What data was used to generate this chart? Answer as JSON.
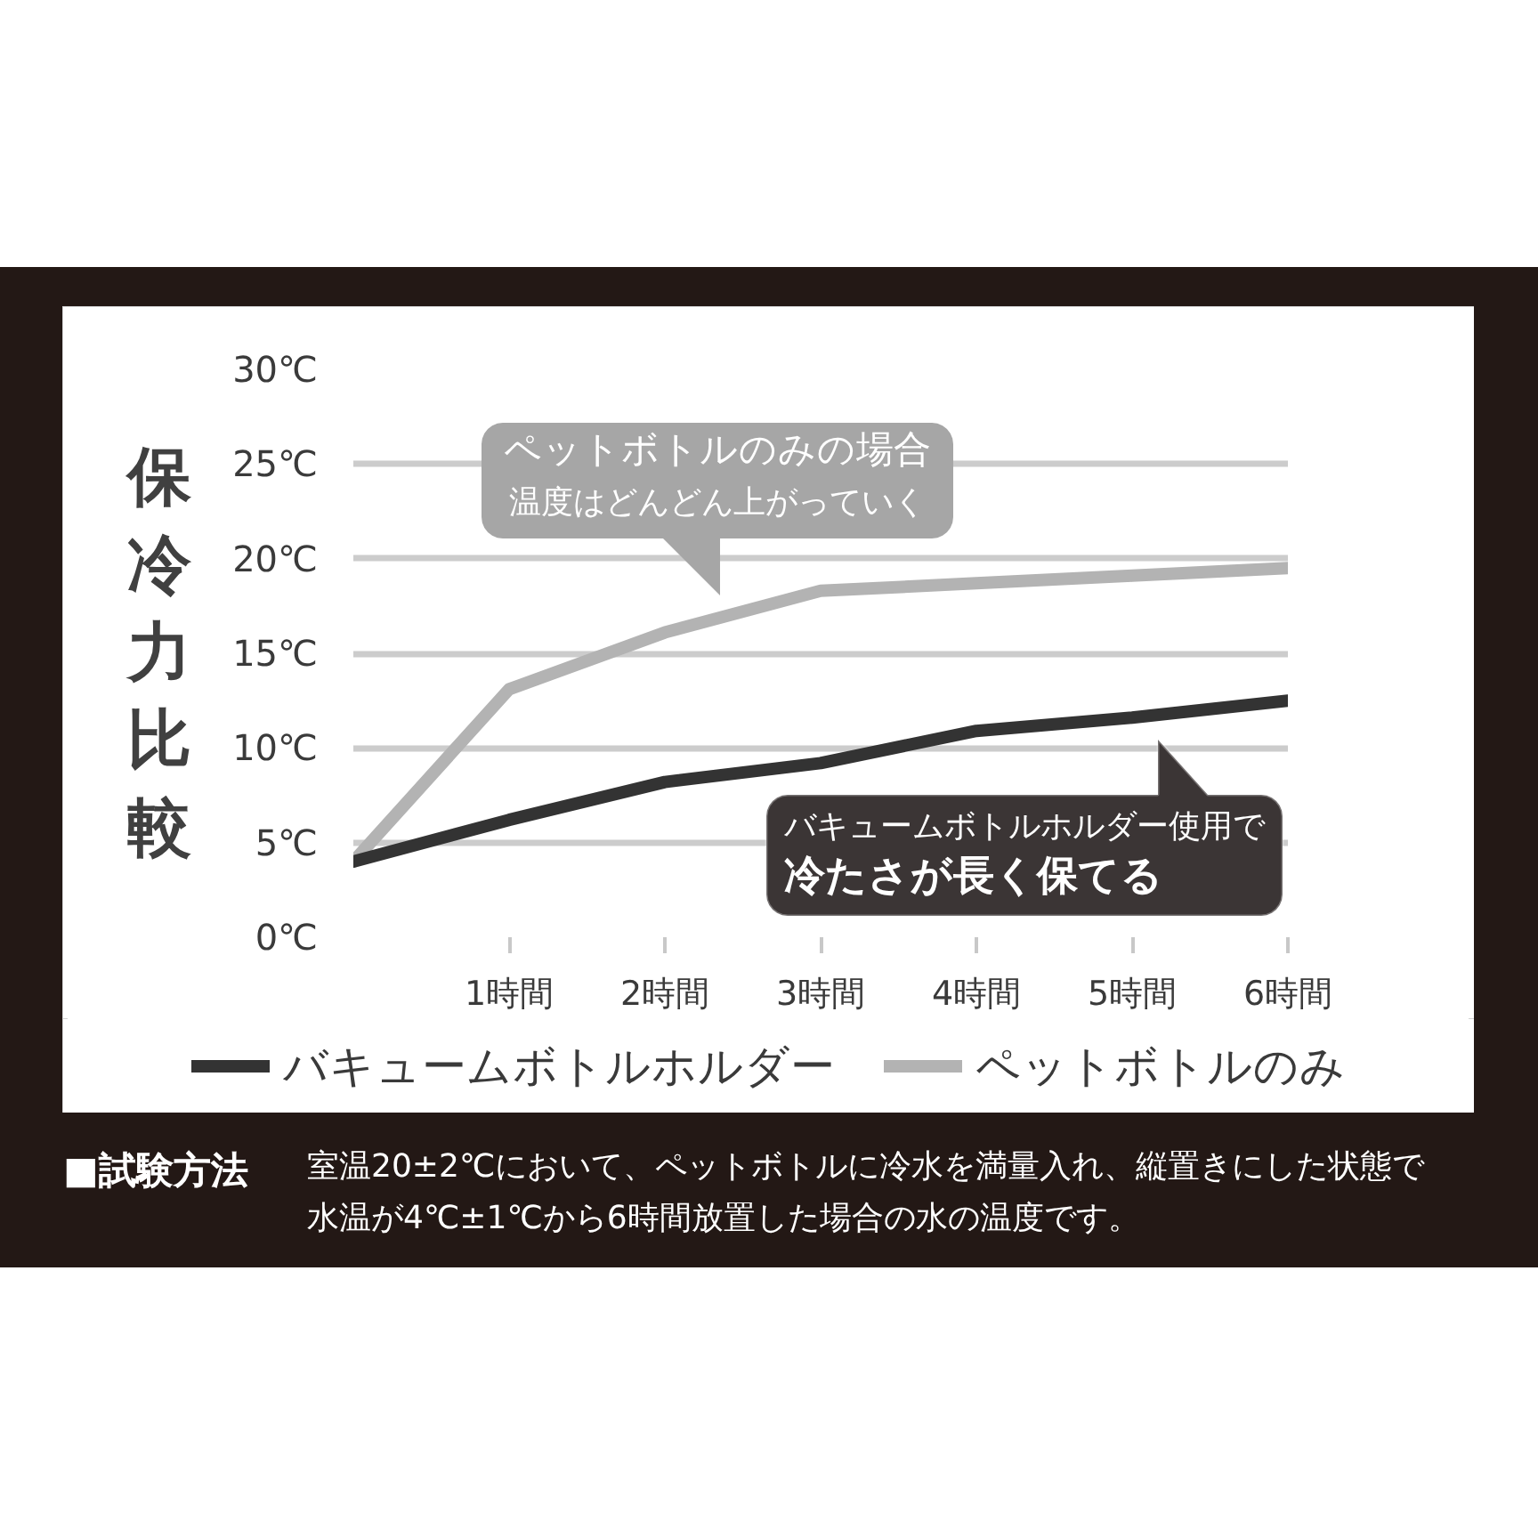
{
  "chart_data": {
    "type": "line",
    "ylabel": "保冷力比較",
    "x": [
      0,
      1,
      2,
      3,
      4,
      5,
      6
    ],
    "xlim": [
      0,
      6
    ],
    "xticks": [
      {
        "value": 1,
        "label": "1時間"
      },
      {
        "value": 2,
        "label": "2時間"
      },
      {
        "value": 3,
        "label": "3時間"
      },
      {
        "value": 4,
        "label": "4時間"
      },
      {
        "value": 5,
        "label": "5時間"
      },
      {
        "value": 6,
        "label": "6時間"
      }
    ],
    "ylim": [
      0,
      30
    ],
    "yticks": [
      {
        "value": 0,
        "label": "0℃"
      },
      {
        "value": 5,
        "label": "5℃"
      },
      {
        "value": 10,
        "label": "10℃"
      },
      {
        "value": 15,
        "label": "15℃"
      },
      {
        "value": 20,
        "label": "20℃"
      },
      {
        "value": 25,
        "label": "25℃"
      },
      {
        "value": 30,
        "label": "30℃"
      }
    ],
    "series": [
      {
        "name": "バキュームボトルホルダー",
        "color": "#333333",
        "values": [
          4.0,
          6.2,
          8.2,
          9.2,
          10.9,
          11.6,
          12.5
        ]
      },
      {
        "name": "ペットボトルのみ",
        "color": "#b3b3b3",
        "values": [
          4.0,
          13.1,
          16.1,
          18.3,
          18.7,
          19.1,
          19.5
        ]
      }
    ],
    "grid": "y",
    "legend": "bottom",
    "annotations": [
      "ペットボトルのみの場合",
      "温度はどんどん上がっていく",
      "バキュームボトルホルダー使用で",
      "冷たさが長く保てる",
      "■試験方法",
      "室温20±2℃において、ペットボトルに冷水を満量入れ、縦置きにした状態で水温が4℃±1℃から6時間放置した場合の水の温度です。"
    ]
  }
}
